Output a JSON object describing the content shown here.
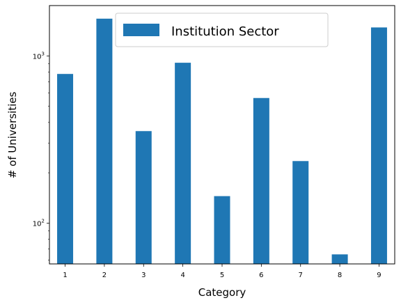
{
  "chart_data": {
    "type": "bar",
    "title": "",
    "xlabel": "Category",
    "ylabel": "# of Universities",
    "yscale": "log",
    "ylim": [
      57,
      2000
    ],
    "xlim": [
      0.6,
      9.4
    ],
    "x": [
      1,
      2,
      3,
      4,
      5,
      6,
      7,
      8,
      9
    ],
    "x_ticks": [
      "1",
      "2",
      "3",
      "4",
      "5",
      "6",
      "7",
      "8",
      "9"
    ],
    "y_ticks": [
      {
        "value": 100,
        "base": "10",
        "exp": "2"
      },
      {
        "value": 1000,
        "base": "10",
        "exp": "3"
      }
    ],
    "series": [
      {
        "name": "Institution Sector",
        "color": "#1f77b4",
        "values": [
          780,
          1670,
          355,
          910,
          145,
          560,
          235,
          65,
          1480
        ]
      }
    ],
    "legend_position": "top-center",
    "grid": false
  }
}
